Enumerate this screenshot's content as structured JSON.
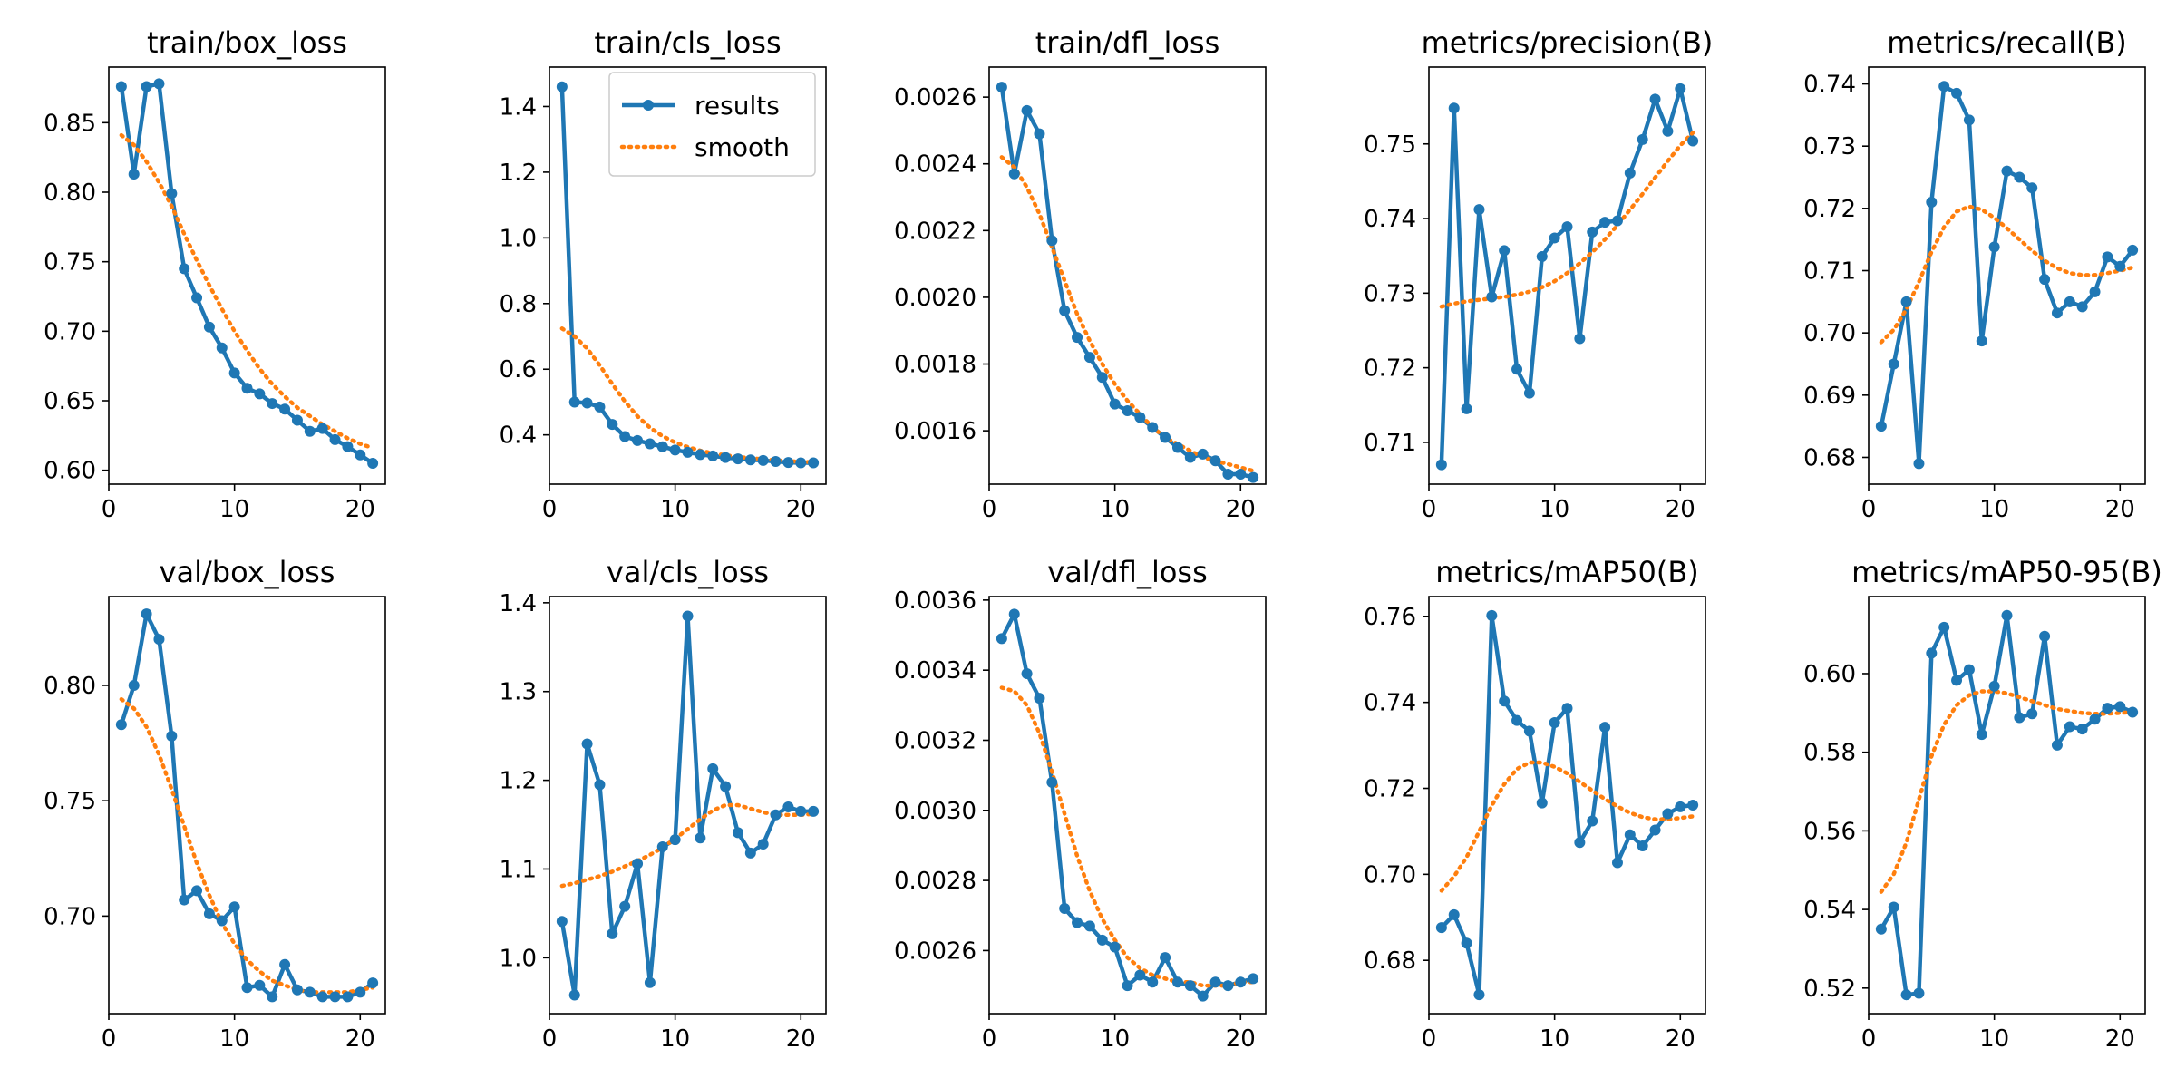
{
  "colors": {
    "results": "#1f77b4",
    "smooth": "#ff7f0e",
    "axis": "#000000"
  },
  "legend": {
    "results_label": "results",
    "smooth_label": "smooth",
    "location": "top-right",
    "panel_index": 1
  },
  "chart_data": [
    {
      "type": "line",
      "title": "train/box_loss",
      "x": [
        1,
        2,
        3,
        4,
        5,
        6,
        7,
        8,
        9,
        10,
        11,
        12,
        13,
        14,
        15,
        16,
        17,
        18,
        19,
        20,
        21
      ],
      "series": [
        {
          "name": "results",
          "values": [
            0.876,
            0.813,
            0.876,
            0.878,
            0.799,
            0.745,
            0.724,
            0.703,
            0.688,
            0.67,
            0.659,
            0.655,
            0.648,
            0.644,
            0.636,
            0.628,
            0.63,
            0.622,
            0.617,
            0.611,
            0.605
          ]
        },
        {
          "name": "smooth",
          "values": [
            0.841,
            0.834,
            0.822,
            0.807,
            0.79,
            0.77,
            0.751,
            0.733,
            0.716,
            0.7,
            0.686,
            0.673,
            0.662,
            0.653,
            0.645,
            0.639,
            0.633,
            0.628,
            0.623,
            0.619,
            0.616
          ]
        }
      ],
      "xlim": [
        0,
        22
      ],
      "ylim": [
        0.59,
        0.89
      ],
      "xticks": [
        0,
        10,
        20
      ],
      "xtick_labels": [
        "0",
        "10",
        "20"
      ],
      "yticks": [
        0.6,
        0.65,
        0.7,
        0.75,
        0.8,
        0.85
      ],
      "ytick_labels": [
        "0.60",
        "0.65",
        "0.70",
        "0.75",
        "0.80",
        "0.85"
      ]
    },
    {
      "type": "line",
      "title": "train/cls_loss",
      "x": [
        1,
        2,
        3,
        4,
        5,
        6,
        7,
        8,
        9,
        10,
        11,
        12,
        13,
        14,
        15,
        16,
        17,
        18,
        19,
        20,
        21
      ],
      "series": [
        {
          "name": "results",
          "values": [
            1.46,
            0.5,
            0.497,
            0.485,
            0.432,
            0.395,
            0.383,
            0.373,
            0.364,
            0.354,
            0.347,
            0.34,
            0.336,
            0.331,
            0.327,
            0.324,
            0.322,
            0.319,
            0.316,
            0.315,
            0.315
          ]
        },
        {
          "name": "smooth",
          "values": [
            0.724,
            0.7,
            0.663,
            0.612,
            0.555,
            0.502,
            0.457,
            0.422,
            0.396,
            0.377,
            0.363,
            0.352,
            0.344,
            0.338,
            0.333,
            0.329,
            0.326,
            0.323,
            0.32,
            0.318,
            0.317
          ]
        }
      ],
      "xlim": [
        0,
        22
      ],
      "ylim": [
        0.25,
        1.52
      ],
      "xticks": [
        0,
        10,
        20
      ],
      "xtick_labels": [
        "0",
        "10",
        "20"
      ],
      "yticks": [
        0.4,
        0.6,
        0.8,
        1.0,
        1.2,
        1.4
      ],
      "ytick_labels": [
        "0.4",
        "0.6",
        "0.8",
        "1.0",
        "1.2",
        "1.4"
      ]
    },
    {
      "type": "line",
      "title": "train/dfl_loss",
      "x": [
        1,
        2,
        3,
        4,
        5,
        6,
        7,
        8,
        9,
        10,
        11,
        12,
        13,
        14,
        15,
        16,
        17,
        18,
        19,
        20,
        21
      ],
      "series": [
        {
          "name": "results",
          "values": [
            0.00263,
            0.00237,
            0.00256,
            0.00249,
            0.00217,
            0.00196,
            0.00188,
            0.00182,
            0.00176,
            0.00168,
            0.00166,
            0.00164,
            0.00161,
            0.00158,
            0.00155,
            0.00152,
            0.00153,
            0.00151,
            0.00147,
            0.00147,
            0.00146
          ]
        },
        {
          "name": "smooth",
          "values": [
            0.00242,
            0.00239,
            0.00233,
            0.00225,
            0.00215,
            0.00205,
            0.00195,
            0.00187,
            0.0018,
            0.00174,
            0.00169,
            0.00165,
            0.00161,
            0.00158,
            0.00156,
            0.00154,
            0.00152,
            0.00151,
            0.0015,
            0.00149,
            0.00148
          ]
        }
      ],
      "xlim": [
        0,
        22
      ],
      "ylim": [
        0.00144,
        0.00269
      ],
      "xticks": [
        0,
        10,
        20
      ],
      "xtick_labels": [
        "0",
        "10",
        "20"
      ],
      "yticks": [
        0.0016,
        0.0018,
        0.002,
        0.0022,
        0.0024,
        0.0026
      ],
      "ytick_labels": [
        "0.0016",
        "0.0018",
        "0.0020",
        "0.0022",
        "0.0024",
        "0.0026"
      ]
    },
    {
      "type": "line",
      "title": "metrics/precision(B)",
      "x": [
        1,
        2,
        3,
        4,
        5,
        6,
        7,
        8,
        9,
        10,
        11,
        12,
        13,
        14,
        15,
        16,
        17,
        18,
        19,
        20,
        21
      ],
      "series": [
        {
          "name": "results",
          "values": [
            0.707,
            0.7548,
            0.7145,
            0.7412,
            0.7295,
            0.7357,
            0.7198,
            0.7166,
            0.7349,
            0.7374,
            0.7389,
            0.7239,
            0.7382,
            0.7395,
            0.7397,
            0.7461,
            0.7506,
            0.756,
            0.7517,
            0.7574,
            0.7504
          ]
        },
        {
          "name": "smooth",
          "values": [
            0.7282,
            0.7286,
            0.7289,
            0.7291,
            0.7293,
            0.7295,
            0.7298,
            0.7302,
            0.7308,
            0.7316,
            0.7327,
            0.734,
            0.7355,
            0.7372,
            0.7391,
            0.7412,
            0.7433,
            0.7455,
            0.7477,
            0.7498,
            0.7515
          ]
        }
      ],
      "xlim": [
        0,
        22
      ],
      "ylim": [
        0.7044,
        0.7603
      ],
      "xticks": [
        0,
        10,
        20
      ],
      "xtick_labels": [
        "0",
        "10",
        "20"
      ],
      "yticks": [
        0.71,
        0.72,
        0.73,
        0.74,
        0.75
      ],
      "ytick_labels": [
        "0.71",
        "0.72",
        "0.73",
        "0.74",
        "0.75"
      ]
    },
    {
      "type": "line",
      "title": "metrics/recall(B)",
      "x": [
        1,
        2,
        3,
        4,
        5,
        6,
        7,
        8,
        9,
        10,
        11,
        12,
        13,
        14,
        15,
        16,
        17,
        18,
        19,
        20,
        21
      ],
      "series": [
        {
          "name": "results",
          "values": [
            0.685,
            0.695,
            0.705,
            0.679,
            0.721,
            0.7396,
            0.7385,
            0.7342,
            0.6987,
            0.7138,
            0.726,
            0.725,
            0.7233,
            0.7086,
            0.7032,
            0.705,
            0.7042,
            0.7066,
            0.7122,
            0.7107,
            0.7133
          ]
        },
        {
          "name": "smooth",
          "values": [
            0.6985,
            0.7005,
            0.7038,
            0.7082,
            0.713,
            0.717,
            0.7195,
            0.7203,
            0.7198,
            0.7185,
            0.7168,
            0.715,
            0.7132,
            0.7116,
            0.7104,
            0.7096,
            0.7093,
            0.7093,
            0.7096,
            0.71,
            0.7105
          ]
        }
      ],
      "xlim": [
        0,
        22
      ],
      "ylim": [
        0.6757,
        0.7427
      ],
      "xticks": [
        0,
        10,
        20
      ],
      "xtick_labels": [
        "0",
        "10",
        "20"
      ],
      "yticks": [
        0.68,
        0.69,
        0.7,
        0.71,
        0.72,
        0.73,
        0.74
      ],
      "ytick_labels": [
        "0.68",
        "0.69",
        "0.70",
        "0.71",
        "0.72",
        "0.73",
        "0.74"
      ]
    },
    {
      "type": "line",
      "title": "val/box_loss",
      "x": [
        1,
        2,
        3,
        4,
        5,
        6,
        7,
        8,
        9,
        10,
        11,
        12,
        13,
        14,
        15,
        16,
        17,
        18,
        19,
        20,
        21
      ],
      "series": [
        {
          "name": "results",
          "values": [
            0.783,
            0.8,
            0.831,
            0.82,
            0.778,
            0.707,
            0.711,
            0.701,
            0.698,
            0.704,
            0.669,
            0.67,
            0.665,
            0.679,
            0.668,
            0.667,
            0.665,
            0.665,
            0.665,
            0.667,
            0.671
          ]
        },
        {
          "name": "smooth",
          "values": [
            0.794,
            0.79,
            0.782,
            0.77,
            0.755,
            0.739,
            0.723,
            0.709,
            0.697,
            0.688,
            0.681,
            0.676,
            0.672,
            0.67,
            0.668,
            0.667,
            0.667,
            0.667,
            0.667,
            0.668,
            0.669
          ]
        }
      ],
      "xlim": [
        0,
        22
      ],
      "ylim": [
        0.6577,
        0.8385
      ],
      "xticks": [
        0,
        10,
        20
      ],
      "xtick_labels": [
        "0",
        "10",
        "20"
      ],
      "yticks": [
        0.7,
        0.75,
        0.8
      ],
      "ytick_labels": [
        "0.70",
        "0.75",
        "0.80"
      ]
    },
    {
      "type": "line",
      "title": "val/cls_loss",
      "x": [
        1,
        2,
        3,
        4,
        5,
        6,
        7,
        8,
        9,
        10,
        11,
        12,
        13,
        14,
        15,
        16,
        17,
        18,
        19,
        20,
        21
      ],
      "series": [
        {
          "name": "results",
          "values": [
            1.041,
            0.958,
            1.241,
            1.195,
            1.027,
            1.058,
            1.106,
            0.972,
            1.125,
            1.133,
            1.385,
            1.135,
            1.213,
            1.193,
            1.141,
            1.118,
            1.128,
            1.161,
            1.17,
            1.165,
            1.165
          ]
        },
        {
          "name": "smooth",
          "values": [
            1.081,
            1.084,
            1.088,
            1.092,
            1.097,
            1.103,
            1.109,
            1.116,
            1.124,
            1.134,
            1.145,
            1.156,
            1.166,
            1.172,
            1.172,
            1.168,
            1.164,
            1.161,
            1.161,
            1.161,
            1.162
          ]
        }
      ],
      "xlim": [
        0,
        22
      ],
      "ylim": [
        0.937,
        1.407
      ],
      "xticks": [
        0,
        10,
        20
      ],
      "xtick_labels": [
        "0",
        "10",
        "20"
      ],
      "yticks": [
        1.0,
        1.1,
        1.2,
        1.3,
        1.4
      ],
      "ytick_labels": [
        "1.0",
        "1.1",
        "1.2",
        "1.3",
        "1.4"
      ]
    },
    {
      "type": "line",
      "title": "val/dfl_loss",
      "x": [
        1,
        2,
        3,
        4,
        5,
        6,
        7,
        8,
        9,
        10,
        11,
        12,
        13,
        14,
        15,
        16,
        17,
        18,
        19,
        20,
        21
      ],
      "series": [
        {
          "name": "results",
          "values": [
            0.00349,
            0.00356,
            0.00339,
            0.00332,
            0.00308,
            0.00272,
            0.00268,
            0.00267,
            0.00263,
            0.00261,
            0.0025,
            0.00253,
            0.00251,
            0.00258,
            0.00251,
            0.0025,
            0.00247,
            0.00251,
            0.0025,
            0.00251,
            0.00252
          ]
        },
        {
          "name": "smooth",
          "values": [
            0.00335,
            0.00334,
            0.0033,
            0.00322,
            0.00311,
            0.00299,
            0.00287,
            0.00277,
            0.00269,
            0.00263,
            0.00258,
            0.00255,
            0.00253,
            0.00252,
            0.00251,
            0.00251,
            0.0025,
            0.0025,
            0.0025,
            0.00251,
            0.00251
          ]
        }
      ],
      "xlim": [
        0,
        22
      ],
      "ylim": [
        0.00242,
        0.00361
      ],
      "xticks": [
        0,
        10,
        20
      ],
      "xtick_labels": [
        "0",
        "10",
        "20"
      ],
      "yticks": [
        0.0026,
        0.0028,
        0.003,
        0.0032,
        0.0034,
        0.0036
      ],
      "ytick_labels": [
        "0.0026",
        "0.0028",
        "0.0030",
        "0.0032",
        "0.0034",
        "0.0036"
      ]
    },
    {
      "type": "line",
      "title": "metrics/mAP50(B)",
      "x": [
        1,
        2,
        3,
        4,
        5,
        6,
        7,
        8,
        9,
        10,
        11,
        12,
        13,
        14,
        15,
        16,
        17,
        18,
        19,
        20,
        21
      ],
      "series": [
        {
          "name": "results",
          "values": [
            0.6876,
            0.6906,
            0.684,
            0.672,
            0.7602,
            0.7403,
            0.7358,
            0.7333,
            0.7166,
            0.7353,
            0.7386,
            0.7074,
            0.7124,
            0.7342,
            0.7027,
            0.7092,
            0.7066,
            0.7103,
            0.7141,
            0.7157,
            0.7161
          ]
        },
        {
          "name": "smooth",
          "values": [
            0.6962,
            0.6995,
            0.704,
            0.71,
            0.716,
            0.721,
            0.7245,
            0.726,
            0.726,
            0.725,
            0.7235,
            0.7215,
            0.7195,
            0.7175,
            0.7158,
            0.7143,
            0.7133,
            0.7128,
            0.7128,
            0.7131,
            0.7135
          ]
        }
      ],
      "xlim": [
        0,
        22
      ],
      "ylim": [
        0.6676,
        0.7646
      ],
      "xticks": [
        0,
        10,
        20
      ],
      "xtick_labels": [
        "0",
        "10",
        "20"
      ],
      "yticks": [
        0.68,
        0.7,
        0.72,
        0.74,
        0.76
      ],
      "ytick_labels": [
        "0.68",
        "0.70",
        "0.72",
        "0.74",
        "0.76"
      ]
    },
    {
      "type": "line",
      "title": "metrics/mAP50-95(B)",
      "x": [
        1,
        2,
        3,
        4,
        5,
        6,
        7,
        8,
        9,
        10,
        11,
        12,
        13,
        14,
        15,
        16,
        17,
        18,
        19,
        20,
        21
      ],
      "series": [
        {
          "name": "results",
          "values": [
            0.535,
            0.5406,
            0.5183,
            0.5187,
            0.6052,
            0.6118,
            0.5983,
            0.601,
            0.5845,
            0.5968,
            0.6148,
            0.5888,
            0.5898,
            0.6095,
            0.5818,
            0.5865,
            0.5859,
            0.5884,
            0.5912,
            0.5916,
            0.5902
          ]
        },
        {
          "name": "smooth",
          "values": [
            0.5445,
            0.549,
            0.557,
            0.568,
            0.579,
            0.587,
            0.592,
            0.5945,
            0.5955,
            0.5955,
            0.595,
            0.594,
            0.593,
            0.592,
            0.591,
            0.5905,
            0.59,
            0.5898,
            0.5898,
            0.59,
            0.5902
          ]
        }
      ],
      "xlim": [
        0,
        22
      ],
      "ylim": [
        0.5135,
        0.6196
      ],
      "xticks": [
        0,
        10,
        20
      ],
      "xtick_labels": [
        "0",
        "10",
        "20"
      ],
      "yticks": [
        0.52,
        0.54,
        0.56,
        0.58,
        0.6
      ],
      "ytick_labels": [
        "0.52",
        "0.54",
        "0.56",
        "0.58",
        "0.60"
      ]
    }
  ]
}
